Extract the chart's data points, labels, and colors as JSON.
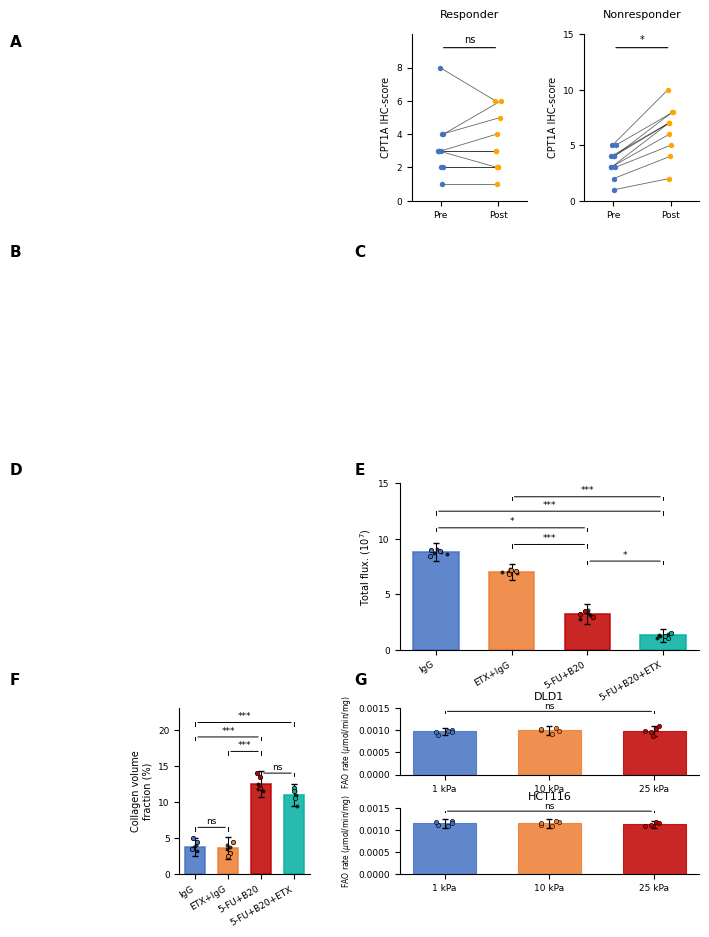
{
  "responder_pre": [
    8,
    4,
    4,
    3,
    3,
    3,
    3,
    2,
    2,
    1
  ],
  "responder_post": [
    6,
    6,
    5,
    4,
    3,
    3,
    2,
    2,
    2,
    1
  ],
  "nonresponder_pre": [
    5,
    5,
    4,
    4,
    4,
    3,
    3,
    3,
    2,
    1
  ],
  "nonresponder_post": [
    10,
    8,
    8,
    7,
    7,
    7,
    6,
    5,
    4,
    2
  ],
  "responder_pre_colors": [
    "#4472c4",
    "#4472c4",
    "#4472c4",
    "#4472c4",
    "#4472c4",
    "#4472c4",
    "#4472c4",
    "#4472c4",
    "orange",
    "orange"
  ],
  "responder_post_colors": [
    "orange",
    "#4472c4",
    "#4472c4",
    "orange",
    "orange",
    "orange",
    "#4472c4",
    "#4472c4",
    "orange",
    "orange"
  ],
  "nonresponder_pre_colors": [
    "#4472c4",
    "#4472c4",
    "#4472c4",
    "#4472c4",
    "#4472c4",
    "#4472c4",
    "#4472c4",
    "#4472c4",
    "orange",
    "orange"
  ],
  "nonresponder_post_colors": [
    "#4472c4",
    "orange",
    "orange",
    "orange",
    "orange",
    "orange",
    "orange",
    "orange",
    "orange",
    "orange"
  ],
  "e_bar_colors": [
    "#4472c4",
    "#ed7d31",
    "#c00000",
    "#00b0a0"
  ],
  "e_categories": [
    "IgG",
    "ETX+IgG",
    "5-FU+B20",
    "5-FU+B20+ETX"
  ],
  "e_means": [
    8.8,
    7.0,
    3.2,
    1.3
  ],
  "e_errors": [
    0.8,
    0.7,
    0.9,
    0.6
  ],
  "e_dots": [
    [
      8.9,
      9.0,
      8.5,
      9.1,
      8.8,
      8.7,
      8.6
    ],
    [
      7.1,
      7.2,
      6.8,
      7.0,
      6.9,
      7.3,
      7.0
    ],
    [
      3.5,
      3.0,
      3.2,
      2.8,
      3.3,
      3.6,
      3.1
    ],
    [
      1.5,
      1.1,
      1.2,
      1.4,
      1.3,
      1.2,
      1.1
    ]
  ],
  "f_bar_colors": [
    "#4472c4",
    "#ed7d31",
    "#c00000",
    "#00b0a0"
  ],
  "f_categories": [
    "IgG",
    "ETX+IgG",
    "5-FU+B20",
    "5-FU+B20+ETX"
  ],
  "f_means": [
    3.8,
    3.6,
    12.5,
    11.0
  ],
  "f_errors": [
    1.2,
    1.5,
    1.8,
    1.5
  ],
  "f_dots": [
    [
      4.5,
      5.0,
      3.5,
      4.0,
      3.2,
      3.8
    ],
    [
      4.5,
      3.0,
      2.5,
      4.0,
      3.5,
      3.8
    ],
    [
      13.5,
      14.0,
      12.0,
      11.5,
      12.5,
      11.8
    ],
    [
      12.0,
      11.5,
      10.5,
      9.5,
      11.0,
      11.5
    ]
  ],
  "g_dld1_means": [
    0.00098,
    0.001,
    0.00098
  ],
  "g_dld1_errors": [
    8e-05,
    0.0001,
    0.00012
  ],
  "g_dld1_dots": [
    [
      0.0009,
      0.00095,
      0.001,
      0.00097,
      0.00098
    ],
    [
      0.00092,
      0.00098,
      0.00105,
      0.001,
      0.00102
    ],
    [
      0.00088,
      0.00095,
      0.00102,
      0.00098,
      0.0011
    ]
  ],
  "g_hct116_means": [
    0.00115,
    0.00115,
    0.00113
  ],
  "g_hct116_errors": [
    0.0001,
    0.0001,
    8e-05
  ],
  "g_hct116_dots": [
    [
      0.00112,
      0.00118,
      0.0012,
      0.00115,
      0.0011
    ],
    [
      0.0011,
      0.00118,
      0.0012,
      0.00112,
      0.00115
    ],
    [
      0.00108,
      0.00112,
      0.00118,
      0.0011,
      0.00115
    ]
  ],
  "g_categories": [
    "1 kPa",
    "10 kPa",
    "25 kPa"
  ],
  "g_bar_colors": [
    "#4472c4",
    "#ed7d31",
    "#c00000"
  ],
  "panel_label_fontsize": 10,
  "axis_label_fontsize": 7,
  "tick_fontsize": 6.5,
  "title_fontsize": 8
}
